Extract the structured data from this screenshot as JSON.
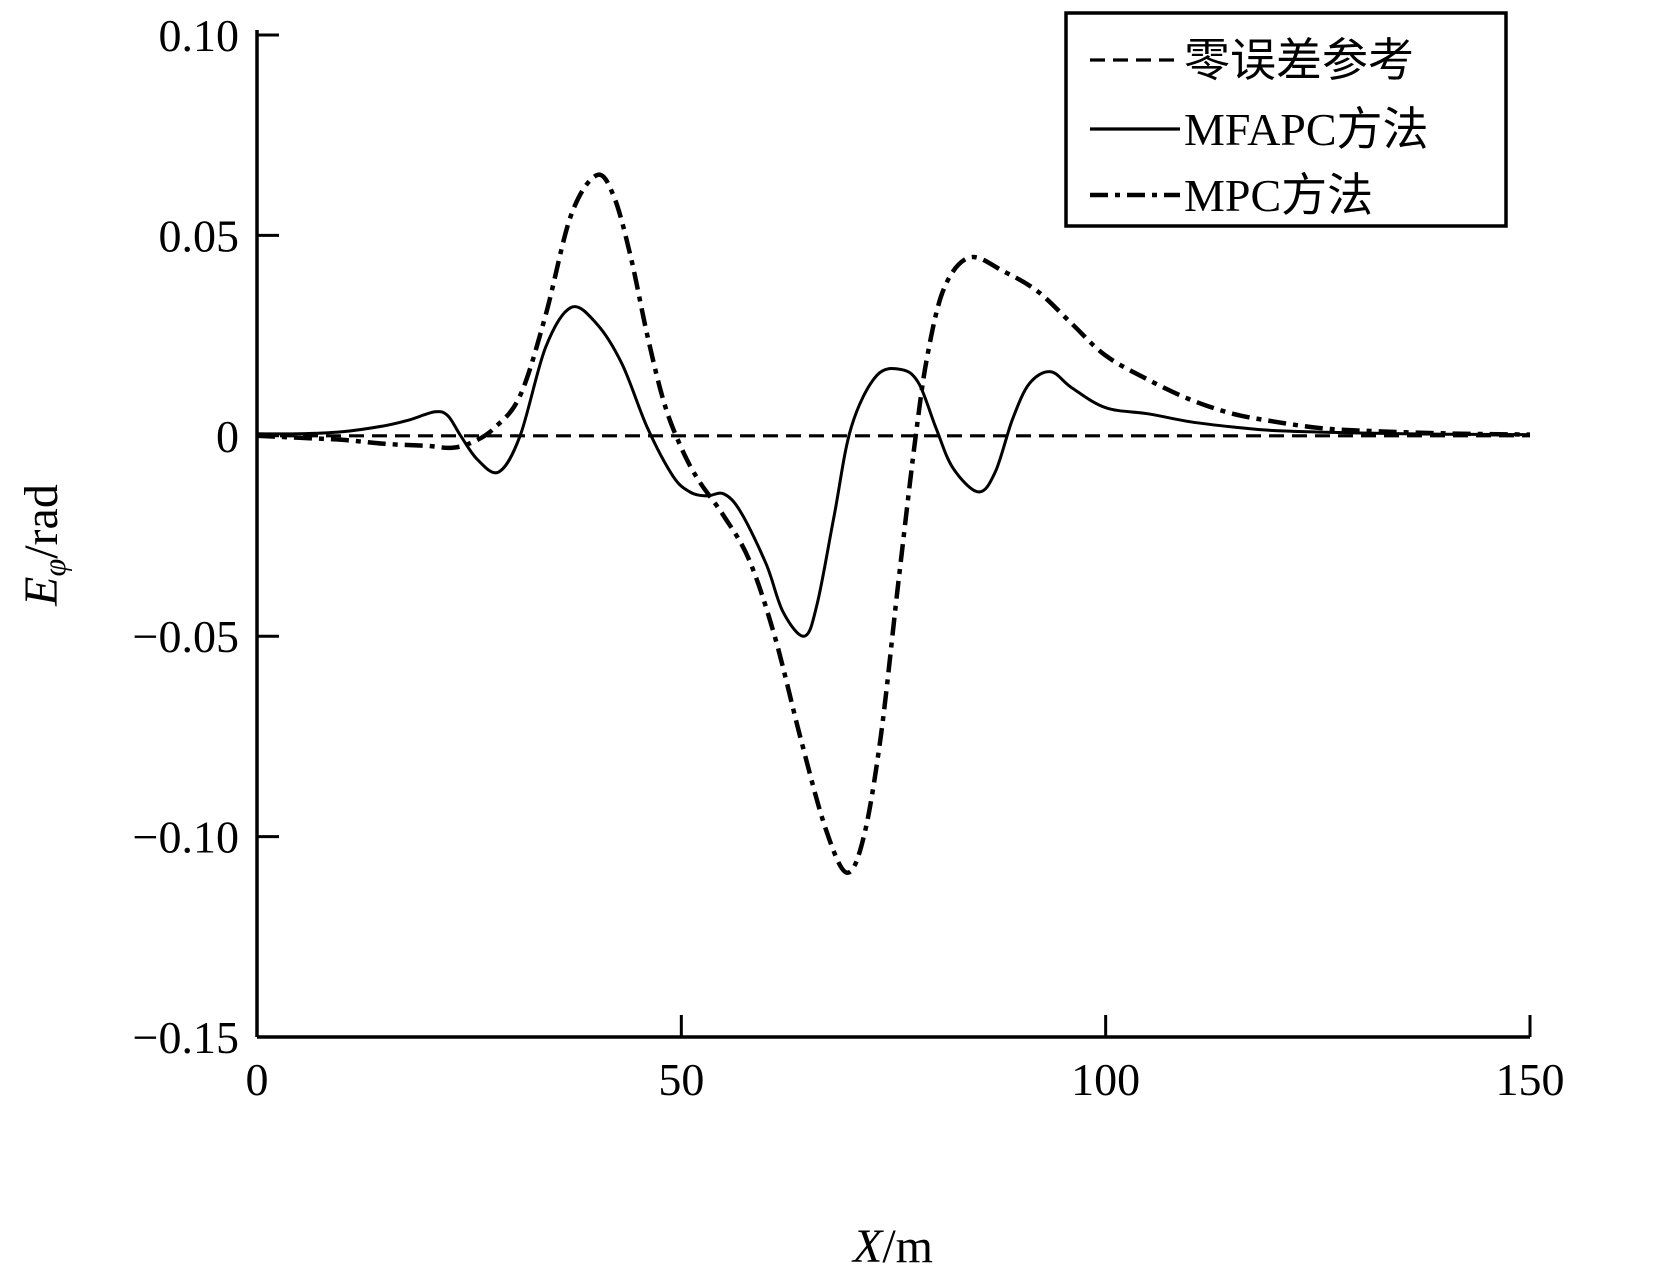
{
  "chart_data": {
    "type": "line",
    "title": "",
    "xlabel": {
      "var": "X",
      "unit": "/m"
    },
    "ylabel": {
      "var": "E",
      "sub": "φ",
      "unit": "/rad"
    },
    "xlim": [
      0,
      150
    ],
    "ylim": [
      -0.15,
      0.1
    ],
    "xticks": [
      0,
      50,
      100,
      150
    ],
    "xtick_labels": [
      "0",
      "50",
      "100",
      "150"
    ],
    "yticks": [
      0.1,
      0.05,
      0,
      -0.05,
      -0.1,
      -0.15
    ],
    "ytick_labels": [
      "0.10",
      "0.05",
      "0",
      "−0.05",
      "−0.10",
      "−0.15"
    ],
    "grid": false,
    "legend_position": "top-right",
    "series": [
      {
        "name": "零误差参考",
        "style": "dashed",
        "color": "#000000",
        "x": [
          0,
          150
        ],
        "y": [
          0,
          0
        ]
      },
      {
        "name": "MFAPC方法",
        "style": "solid",
        "color": "#000000",
        "x": [
          0,
          5,
          10,
          15,
          18,
          21,
          22.5,
          24,
          26,
          28.5,
          31,
          34,
          37,
          40,
          43,
          46,
          49,
          51,
          53,
          55,
          57,
          60,
          62,
          64.5,
          66,
          68,
          70,
          73,
          76,
          78,
          80,
          82,
          85,
          87,
          89,
          91,
          93.5,
          96,
          100,
          105,
          110,
          115,
          120,
          130,
          140,
          150
        ],
        "y": [
          0.0005,
          0.0005,
          0.001,
          0.0025,
          0.004,
          0.006,
          0.005,
          0.0,
          -0.006,
          -0.009,
          0.0,
          0.022,
          0.032,
          0.028,
          0.018,
          0.002,
          -0.01,
          -0.014,
          -0.015,
          -0.0145,
          -0.019,
          -0.032,
          -0.044,
          -0.05,
          -0.042,
          -0.02,
          0.002,
          0.015,
          0.0165,
          0.013,
          0.002,
          -0.008,
          -0.014,
          -0.009,
          0.004,
          0.013,
          0.016,
          0.012,
          0.007,
          0.0055,
          0.0035,
          0.0022,
          0.0013,
          0.0007,
          0.0004,
          0.0003
        ]
      },
      {
        "name": "MPC方法",
        "style": "dashdot",
        "color": "#000000",
        "x": [
          0,
          5,
          10,
          15,
          20,
          23,
          25.5,
          28,
          31,
          34,
          37,
          40,
          42,
          44,
          46,
          48,
          50,
          52,
          55,
          58,
          61,
          64,
          67,
          69.5,
          71.5,
          73.5,
          75.5,
          77.5,
          79,
          81,
          84,
          88,
          92,
          96,
          100,
          105,
          110,
          115,
          120,
          125,
          130,
          140,
          150
        ],
        "y": [
          0.0,
          -0.0005,
          -0.001,
          -0.002,
          -0.0025,
          -0.003,
          -0.0015,
          0.002,
          0.01,
          0.03,
          0.055,
          0.065,
          0.06,
          0.045,
          0.025,
          0.008,
          -0.003,
          -0.011,
          -0.02,
          -0.031,
          -0.05,
          -0.075,
          -0.098,
          -0.109,
          -0.1,
          -0.075,
          -0.038,
          -0.002,
          0.02,
          0.037,
          0.0445,
          0.041,
          0.036,
          0.028,
          0.02,
          0.014,
          0.009,
          0.0055,
          0.0035,
          0.002,
          0.0013,
          0.0006,
          0.0003
        ]
      }
    ]
  }
}
